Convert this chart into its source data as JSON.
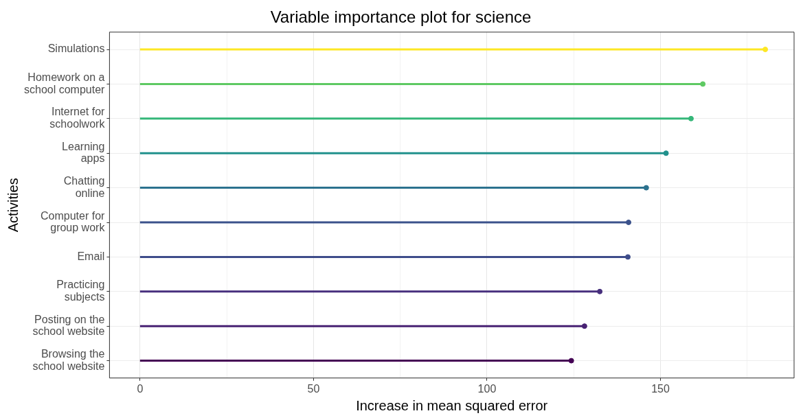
{
  "chart_data": {
    "type": "lollipop",
    "title": "Variable importance plot for science",
    "xlabel": "Increase in mean squared error",
    "ylabel": "Activities",
    "orientation": "horizontal",
    "categories": [
      "Simulations",
      "Homework on a\nschool computer",
      "Internet for\nschoolwork",
      "Learning\napps",
      "Chatting\nonline",
      "Computer for\ngroup work",
      "Email",
      "Practicing\nsubjects",
      "Posting on the\nschool website",
      "Browsing the\nschool website"
    ],
    "values": [
      180.2,
      162.2,
      158.8,
      151.6,
      145.9,
      140.8,
      140.6,
      132.5,
      128.1,
      124.3
    ],
    "colors": [
      "#fde725",
      "#5ec962",
      "#35b779",
      "#21918c",
      "#2c728e",
      "#3b528b",
      "#3e4c8a",
      "#472f7d",
      "#482173",
      "#440154"
    ],
    "xlim": [
      -8.8,
      188.5
    ],
    "xticks": [
      0,
      {
        "value": 25,
        "label": null
      },
      50,
      {
        "value": 75,
        "label": null
      },
      100,
      {
        "value": 125,
        "label": null
      },
      150,
      {
        "value": 175,
        "label": null
      }
    ],
    "grid": true,
    "marker": "circle"
  }
}
